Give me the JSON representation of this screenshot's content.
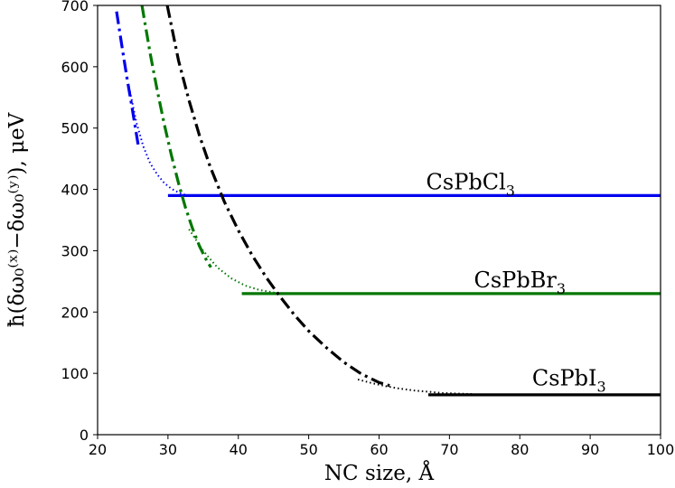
{
  "chart_data": {
    "type": "line",
    "xlabel": "NC size, Å",
    "ylabel": "ħ(δω₀⁽ˣ⁾−δω₀⁽ʸ⁾),  μeV",
    "xlim": [
      20,
      100
    ],
    "ylim": [
      0,
      700
    ],
    "x_ticks": [
      "20",
      "30",
      "40",
      "50",
      "60",
      "70",
      "80",
      "90",
      "100"
    ],
    "y_ticks": [
      "0",
      "100",
      "200",
      "300",
      "400",
      "500",
      "600",
      "700"
    ],
    "grid": false,
    "annotations": [
      {
        "label": "CsPbCl",
        "subscript": "3",
        "x": 73,
        "y": 400
      },
      {
        "label": "CsPbBr",
        "subscript": "3",
        "x": 80,
        "y": 240
      },
      {
        "label": "CsPbI",
        "subscript": "3",
        "x": 87,
        "y": 80
      }
    ],
    "series": [
      {
        "color": "#0000ee",
        "dashdot": {
          "x": [
            22.7,
            23.5,
            24.2,
            24.8,
            25.3,
            25.8
          ],
          "y": [
            690,
            630,
            580,
            540,
            505,
            470
          ]
        },
        "dotted": {
          "x": [
            24.6,
            25.5,
            26.5,
            27.5,
            28.5,
            29.5,
            30.5,
            31.5,
            32.5
          ],
          "y": [
            560,
            510,
            470,
            442,
            424,
            410,
            401,
            395,
            391
          ]
        },
        "plateau": {
          "x": [
            30,
            100
          ],
          "y": [
            390,
            390
          ]
        }
      },
      {
        "color": "#007700",
        "dashdot": {
          "x": [
            26.3,
            27.5,
            28.5,
            29.5,
            30.5,
            31.5,
            32.5,
            33.5,
            34.5,
            35.5,
            36.1
          ],
          "y": [
            700,
            620,
            560,
            505,
            455,
            410,
            370,
            336,
            307,
            284,
            273
          ]
        },
        "dotted": {
          "x": [
            33.0,
            35.0,
            37.0,
            39.0,
            41.0,
            43.0,
            45.0,
            47.0
          ],
          "y": [
            335,
            300,
            273,
            255,
            243,
            236,
            232,
            230
          ]
        },
        "plateau": {
          "x": [
            40.5,
            100
          ],
          "y": [
            230,
            230
          ]
        }
      },
      {
        "color": "#000000",
        "dashdot": {
          "x": [
            29.9,
            31.5,
            33.0,
            34.5,
            36.0,
            38.0,
            40.0,
            42.0,
            44.0,
            46.0,
            48.0,
            50.0,
            52.5,
            55.0,
            57.5,
            60.0,
            61.5
          ],
          "y": [
            700,
            610,
            545,
            487,
            437,
            380,
            333,
            292,
            256,
            224,
            195,
            169,
            142,
            118,
            99,
            85,
            80
          ]
        },
        "dotted": {
          "x": [
            57.0,
            59.0,
            61.0,
            63.0,
            65.0,
            67.0,
            69.0,
            71.0,
            73.5
          ],
          "y": [
            90,
            84,
            79,
            75,
            72,
            70,
            68,
            67,
            66
          ]
        },
        "plateau": {
          "x": [
            67,
            100
          ],
          "y": [
            65,
            65
          ]
        }
      }
    ]
  }
}
